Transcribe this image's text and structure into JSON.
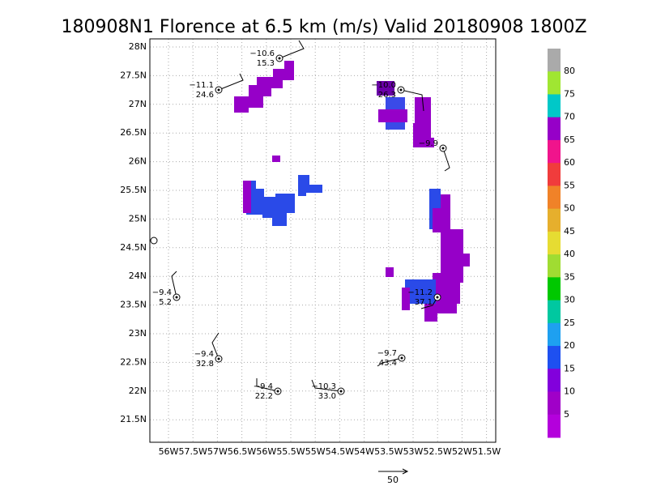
{
  "title": "180908N1 Florence at 6.5 km (m/s) Valid 20180908 1800Z",
  "lat_labels": [
    "28N",
    "27.5N",
    "27N",
    "26.5N",
    "26N",
    "25.5N",
    "25N",
    "24.5N",
    "24N",
    "23.5N",
    "23N",
    "22.5N",
    "22N",
    "21.5N"
  ],
  "lon_labels": [
    "56W",
    "57.5W",
    "57W",
    "56.5W",
    "56W",
    "55.5W",
    "55W",
    "54.5W",
    "54W",
    "53.5W",
    "53W",
    "52.5W",
    "52W",
    "51.5W"
  ],
  "colorbar": {
    "labels": [
      "80",
      "75",
      "70",
      "65",
      "60",
      "55",
      "50",
      "45",
      "40",
      "35",
      "30",
      "25",
      "20",
      "15",
      "10",
      "5"
    ],
    "colors": [
      "#aaaaaa",
      "#a0e632",
      "#00c8c8",
      "#9600c8",
      "#f0148c",
      "#f03c3c",
      "#f08228",
      "#e6af2d",
      "#e6dc32",
      "#a0dc32",
      "#00c800",
      "#00c8a0",
      "#1ea0f0",
      "#1e50f0",
      "#8200dc",
      "#a000c8",
      "#b400dc"
    ]
  },
  "stations": [
    {
      "top": "−10.6",
      "bottom": "15.3"
    },
    {
      "top": "−11.1",
      "bottom": "24.6"
    },
    {
      "top": "−10.0",
      "bottom": "26.3"
    },
    {
      "top": "−9.9"
    },
    {
      "top": "−9.4",
      "bottom": "5.2"
    },
    {
      "top": "−11.2",
      "bottom": "37.1"
    },
    {
      "top": "−9.4",
      "bottom": "32.8"
    },
    {
      "top": "−9.7",
      "bottom": "43.4"
    },
    {
      "top": "−9.4",
      "bottom": "22.2"
    },
    {
      "top": "−10.3",
      "bottom": "33.0"
    }
  ],
  "scale_label": "50"
}
